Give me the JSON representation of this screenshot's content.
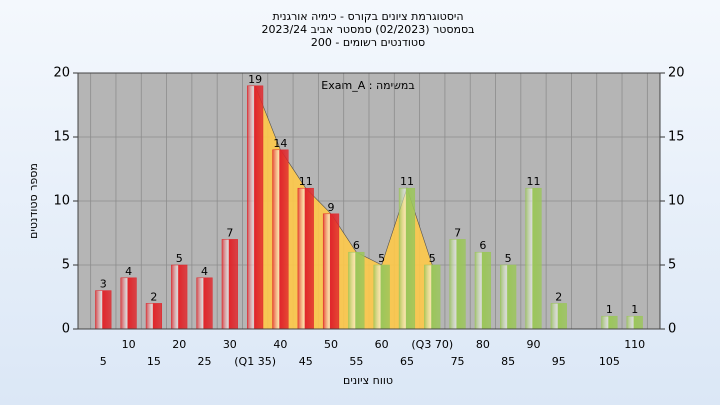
{
  "chart_data": {
    "type": "bar",
    "title": "היסטוגרמת ציונים בקורס - כימיה אורגנית",
    "subtitle": "בסמסטר  (02/2023)  סמסטר אביב 2023/24",
    "subtitle2": "סטודנטים רשומים - 200",
    "annotation": "במשימה : Exam_A",
    "y_label": "מספר סטודנטים",
    "x_label": "טווח ציונים",
    "categories": [
      "5",
      "10",
      "15",
      "20",
      "25",
      "30",
      "(Q1 35)",
      "40",
      "45",
      "50",
      "55",
      "60",
      "65",
      "(Q3 70)",
      "75",
      "80",
      "85",
      "90",
      "95",
      null,
      "105",
      "110"
    ],
    "values": [
      3,
      4,
      2,
      5,
      4,
      7,
      19,
      14,
      11,
      9,
      6,
      5,
      11,
      5,
      7,
      6,
      5,
      11,
      2,
      null,
      1,
      1
    ],
    "colors": [
      "#e0262b",
      "#e0262b",
      "#e0262b",
      "#e0262b",
      "#e0262b",
      "#e0262b",
      "#e0262b",
      "#e0262b",
      "#e0262b",
      "#e0262b",
      "#9bc65a",
      "#9bc65a",
      "#9bc65a",
      "#9bc65a",
      "#9bc65a",
      "#9bc65a",
      "#9bc65a",
      "#9bc65a",
      "#9bc65a",
      "#9bc65a",
      "#9bc65a",
      "#9bc65a"
    ],
    "band_color": "#ffc94a",
    "ylim": [
      0,
      20
    ],
    "yticks": [
      0,
      5,
      10,
      15,
      20
    ],
    "grid": true
  }
}
